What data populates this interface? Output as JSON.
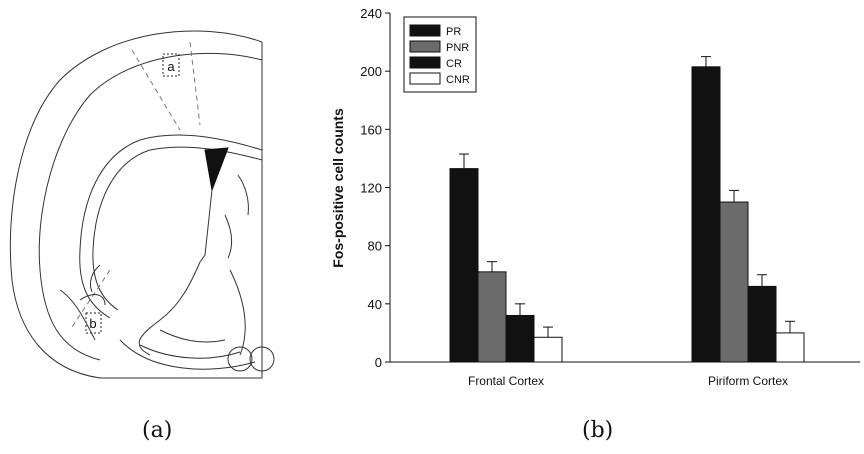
{
  "panel_a": {
    "caption": "(a)",
    "region_labels": [
      "a",
      "b"
    ]
  },
  "panel_b": {
    "caption": "(b)"
  },
  "chart_data": {
    "type": "bar",
    "title": "",
    "xlabel": "",
    "ylabel": "Fos-positive cell counts",
    "ylim": [
      0,
      240
    ],
    "yticks": [
      0,
      40,
      80,
      120,
      160,
      200,
      240
    ],
    "categories": [
      "Frontal Cortex",
      "Piriform Cortex"
    ],
    "grid": false,
    "legend_position": "top-left",
    "series": [
      {
        "name": "PR",
        "color": "#111111",
        "values": [
          133,
          203
        ],
        "errors": [
          10,
          7
        ]
      },
      {
        "name": "PNR",
        "color": "#6b6b6b",
        "values": [
          62,
          110
        ],
        "errors": [
          7,
          8
        ]
      },
      {
        "name": "CR",
        "color": "#111111",
        "values": [
          32,
          52
        ],
        "errors": [
          8,
          8
        ]
      },
      {
        "name": "CNR",
        "color": "#ffffff",
        "values": [
          17,
          20
        ],
        "errors": [
          7,
          8
        ]
      }
    ]
  }
}
